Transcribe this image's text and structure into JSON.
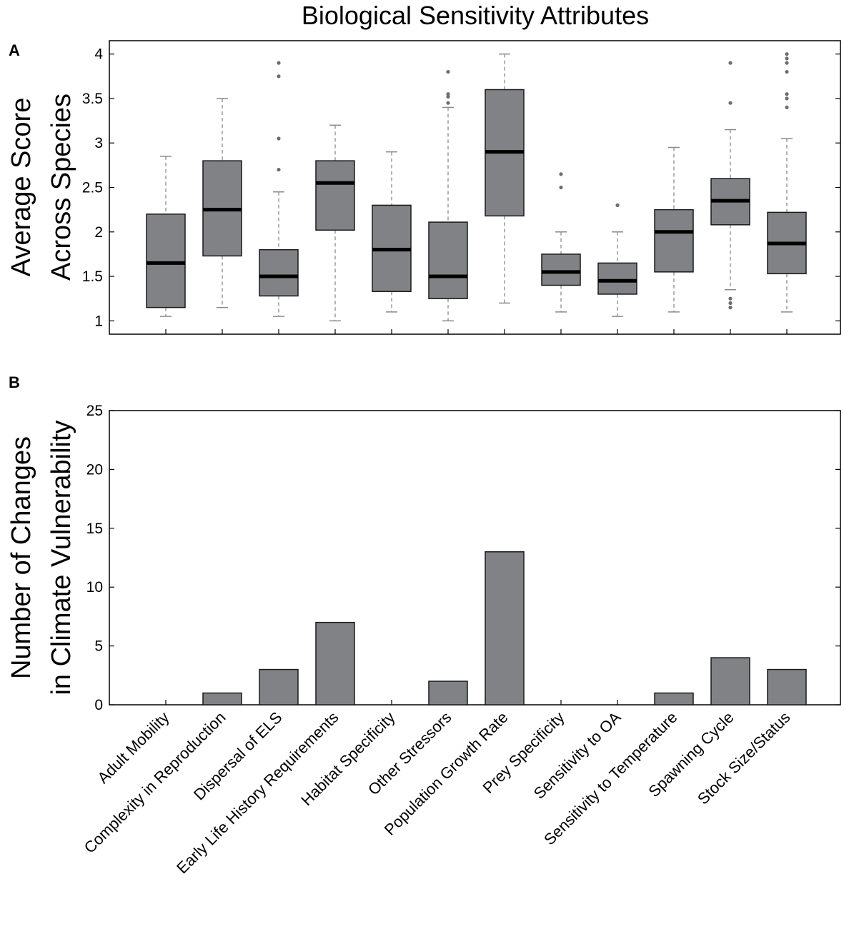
{
  "figure": {
    "title": "Biological Sensitivity Attributes",
    "panel_a_label": "A",
    "panel_b_label": "B"
  },
  "chart_data": [
    {
      "type": "box",
      "panel": "A",
      "ylabel_lines": [
        "Average Score",
        "Across Species"
      ],
      "ylim": [
        0.85,
        4.15
      ],
      "yticks": [
        1,
        1.5,
        2,
        2.5,
        3,
        3.5,
        4
      ],
      "ytick_labels": [
        "1",
        "1.5",
        "2",
        "2.5",
        "3",
        "3.5",
        "4"
      ],
      "colors": {
        "box_fill": "#808285",
        "median": "#000000",
        "whisker": "#8a8a8a",
        "outlier": "#6d6d6d"
      },
      "categories": [
        "Adult Mobility",
        "Complexity in Reproduction",
        "Dispersal of ELS",
        "Early Life History Requirements",
        "Habitat Specificity",
        "Other Stressors",
        "Population Growth Rate",
        "Prey Specificity",
        "Sensitivity to OA",
        "Sensitivity to Temperature",
        "Spawning Cycle",
        "Stock Size/Status"
      ],
      "boxes": [
        {
          "whisker_low": 1.05,
          "q1": 1.15,
          "median": 1.65,
          "q3": 2.2,
          "whisker_high": 2.85,
          "outliers": []
        },
        {
          "whisker_low": 1.15,
          "q1": 1.73,
          "median": 2.25,
          "q3": 2.8,
          "whisker_high": 3.5,
          "outliers": []
        },
        {
          "whisker_low": 1.05,
          "q1": 1.28,
          "median": 1.5,
          "q3": 1.8,
          "whisker_high": 2.45,
          "outliers": [
            2.7,
            3.05,
            3.75,
            3.9
          ]
        },
        {
          "whisker_low": 1.0,
          "q1": 2.02,
          "median": 2.55,
          "q3": 2.8,
          "whisker_high": 3.2,
          "outliers": []
        },
        {
          "whisker_low": 1.1,
          "q1": 1.33,
          "median": 1.8,
          "q3": 2.3,
          "whisker_high": 2.9,
          "outliers": []
        },
        {
          "whisker_low": 1.0,
          "q1": 1.25,
          "median": 1.5,
          "q3": 2.11,
          "whisker_high": 3.4,
          "outliers": [
            3.45,
            3.52,
            3.55,
            3.8
          ]
        },
        {
          "whisker_low": 1.2,
          "q1": 2.18,
          "median": 2.9,
          "q3": 3.6,
          "whisker_high": 4.0,
          "outliers": []
        },
        {
          "whisker_low": 1.1,
          "q1": 1.4,
          "median": 1.55,
          "q3": 1.75,
          "whisker_high": 2.0,
          "outliers": [
            2.5,
            2.65
          ]
        },
        {
          "whisker_low": 1.05,
          "q1": 1.3,
          "median": 1.45,
          "q3": 1.65,
          "whisker_high": 2.0,
          "outliers": [
            2.3
          ]
        },
        {
          "whisker_low": 1.1,
          "q1": 1.55,
          "median": 2.0,
          "q3": 2.25,
          "whisker_high": 2.95,
          "outliers": []
        },
        {
          "whisker_low": 1.35,
          "q1": 2.08,
          "median": 2.35,
          "q3": 2.6,
          "whisker_high": 3.15,
          "outliers": [
            1.15,
            1.2,
            1.25,
            3.45,
            3.9
          ]
        },
        {
          "whisker_low": 1.1,
          "q1": 1.53,
          "median": 1.87,
          "q3": 2.22,
          "whisker_high": 3.05,
          "outliers": [
            3.4,
            3.5,
            3.55,
            3.8,
            3.9,
            3.95,
            4.0
          ]
        }
      ]
    },
    {
      "type": "bar",
      "panel": "B",
      "ylabel_lines": [
        "Number of Changes",
        "in Climate Vulnerability"
      ],
      "ylim": [
        0,
        25
      ],
      "yticks": [
        0,
        5,
        10,
        15,
        20,
        25
      ],
      "ytick_labels": [
        "0",
        "5",
        "10",
        "15",
        "20",
        "25"
      ],
      "colors": {
        "bar_fill": "#808285"
      },
      "categories": [
        "Adult Mobility",
        "Complexity in Reproduction",
        "Dispersal of ELS",
        "Early Life History Requirements",
        "Habitat Specificity",
        "Other Stressors",
        "Population Growth Rate",
        "Prey Specificity",
        "Sensitivity to OA",
        "Sensitivity to Temperature",
        "Spawning Cycle",
        "Stock Size/Status"
      ],
      "values": [
        0,
        1,
        3,
        7,
        0,
        2,
        13,
        0,
        0,
        1,
        4,
        3
      ]
    }
  ]
}
